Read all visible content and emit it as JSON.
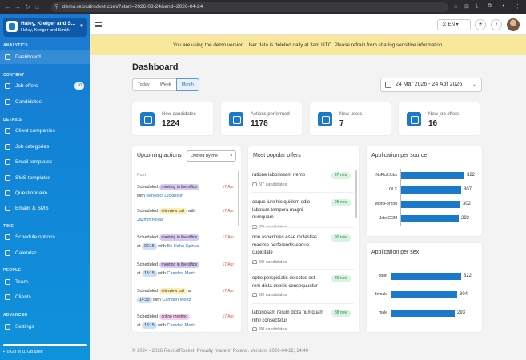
{
  "browser": {
    "url": "demo.recruitrocket.com/?start=2026-03-24&end=2026-04-24"
  },
  "sidebar": {
    "org_name": "Haley, Kreiger and S...",
    "org_subname": "Haley, Kreiger and Smith",
    "sections": {
      "analytics": "ANALYTICS",
      "content": "CONTENT",
      "details": "DETAILS",
      "time": "TIME",
      "people": "PEOPLE",
      "advanced": "ADVANCED"
    },
    "items": {
      "dashboard": "Dashboard",
      "job_offers": "Job offers",
      "job_offers_badge": "10",
      "candidates": "Candidates",
      "client_companies": "Client companies",
      "job_categories": "Job categories",
      "email_templates": "Email templates",
      "sms_templates": "SMS templates",
      "questionnaire": "Questionnaire",
      "emails_sms": "Emails & SMS",
      "schedule_options": "Schedule options",
      "calendar": "Calendar",
      "team": "Team",
      "clients": "Clients",
      "settings": "Settings"
    },
    "storage": "0 GB of 10 GB used"
  },
  "topbar": {
    "language": "EN"
  },
  "banner": "You are using the demo version. User data is deleted daily at 3am UTC. Please refrain from sharing sensitive information.",
  "page": {
    "title": "Dashboard",
    "ranges": [
      "Today",
      "Week",
      "Month"
    ],
    "selected_range": "Month",
    "date_range": "24 Mar 2026 - 24 Apr 2026"
  },
  "stats": [
    {
      "label": "New candidates",
      "value": "1224"
    },
    {
      "label": "Actions performed",
      "value": "1178"
    },
    {
      "label": "New users",
      "value": "7"
    },
    {
      "label": "New job offers",
      "value": "16"
    }
  ],
  "upcoming": {
    "title": "Upcoming actions",
    "filter": "Owned by me",
    "past_label": "Past",
    "a1": {
      "pre": "Scheduled",
      "pill": "meeting in the office",
      "mid": "with",
      "person": "Benedict Dickinson",
      "date": "17 Apr"
    },
    "a2": {
      "pre": "Scheduled",
      "pill": "interview call",
      "mid": "with",
      "person": "Jazmin Kolas",
      "date": "17 Apr"
    },
    "a3": {
      "pre": "Scheduled",
      "pill": "meeting in the office",
      "at": "at",
      "time": "02:15",
      "mid": "with",
      "person": "Bo Hahn-Spinka",
      "date": "17 Apr"
    },
    "a4": {
      "pre": "Scheduled",
      "pill": "meeting in the office",
      "at": "at",
      "time": "13:15",
      "mid": "with",
      "person": "Camden Mertz",
      "date": "17 Apr"
    },
    "a5": {
      "pre": "Scheduled",
      "pill": "interview call",
      "at": "at",
      "time": "14:30",
      "mid": "with",
      "person": "Camden Mertz",
      "date": "17 Apr"
    },
    "a6": {
      "pre": "Scheduled",
      "pill": "online meeting",
      "at": "at",
      "time": "18:15",
      "mid": "with",
      "person": "Camden Mertz",
      "date": "17 Apr"
    }
  },
  "popular": {
    "title": "Most popular offers",
    "offers": [
      {
        "title": "ratione laboriosam nemo",
        "badge": "97 new",
        "candidates": "97 candidates"
      },
      {
        "title": "eaque iure hic quidem odio laborum tempora magni numquam",
        "badge": "95 new",
        "candidates": "95 candidates"
      },
      {
        "title": "non asperiores esse molestias maxime perferendis eaque cupiditate",
        "badge": "90 new",
        "candidates": "90 candidates"
      },
      {
        "title": "optio perspiciatis delectus est rem dicta debitis consequuntur",
        "badge": "89 new",
        "candidates": "89 candidates"
      },
      {
        "title": "laboriosam rerum dicta numquam nihil consectetur",
        "badge": "88 new",
        "candidates": "88 candidates"
      }
    ]
  },
  "chart_data": [
    {
      "type": "bar",
      "orientation": "horizontal",
      "title": "Application per source",
      "categories": [
        "NoFluffJobs",
        "OLX",
        "WorkForYou",
        "JobsCOM"
      ],
      "values": [
        322,
        307,
        302,
        293
      ],
      "color": "#1a7ac9"
    },
    {
      "type": "bar",
      "orientation": "horizontal",
      "title": "Application per sex",
      "categories": [
        "other",
        "female",
        "male"
      ],
      "values": [
        322,
        304,
        293
      ],
      "color": "#1a7ac9"
    }
  ],
  "footer": "© 2024 - 2026 RecruitRocket. Proudly made in Poland. Version: 2026-04-22, 14:40"
}
